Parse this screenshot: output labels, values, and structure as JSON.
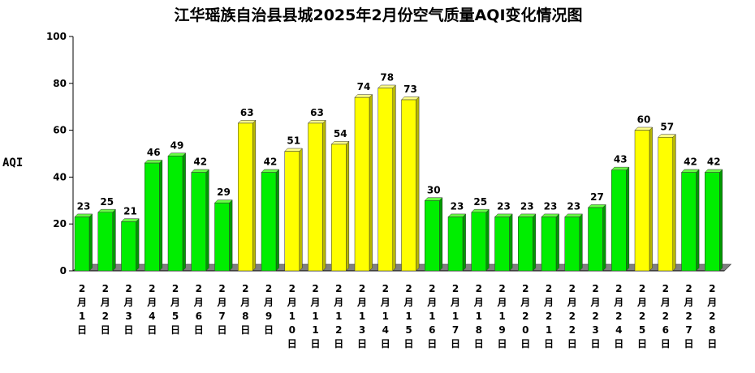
{
  "chart_data": {
    "type": "bar",
    "title": "江华瑶族自治县县城2025年2月份空气质量AQI变化情况图",
    "ylabel": "AQI",
    "xlabel": "",
    "ylim": [
      0,
      100
    ],
    "yticks": [
      "0",
      "20",
      "40",
      "60",
      "80",
      "100"
    ],
    "categories": [
      "2月1日",
      "2月2日",
      "2月3日",
      "2月4日",
      "2月5日",
      "2月6日",
      "2月7日",
      "2月8日",
      "2月9日",
      "2月10日",
      "2月11日",
      "2月12日",
      "2月13日",
      "2月14日",
      "2月15日",
      "2月16日",
      "2月17日",
      "2月18日",
      "2月19日",
      "2月20日",
      "2月21日",
      "2月22日",
      "2月23日",
      "2月24日",
      "2月25日",
      "2月26日",
      "2月27日",
      "2月28日"
    ],
    "values": [
      23,
      25,
      21,
      46,
      49,
      42,
      29,
      63,
      42,
      51,
      63,
      54,
      74,
      78,
      73,
      30,
      23,
      25,
      23,
      23,
      23,
      23,
      27,
      43,
      60,
      57,
      42,
      42
    ],
    "value_labels": [
      "23",
      "25",
      "21",
      "46",
      "49",
      "42",
      "29",
      "63",
      "42",
      "51",
      "63",
      "54",
      "74",
      "78",
      "73",
      "30",
      "23",
      "25",
      "23",
      "23",
      "23",
      "23",
      "27",
      "43",
      "60",
      "57",
      "42",
      "42"
    ],
    "grid": false,
    "colors": {
      "good_fill": "#00ee00",
      "good_top": "#66ff44",
      "good_side": "#009900",
      "moderate_fill": "#ffff00",
      "moderate_top": "#ffff88",
      "moderate_side": "#b8b800",
      "threshold": 50,
      "floor": "#808080"
    }
  }
}
